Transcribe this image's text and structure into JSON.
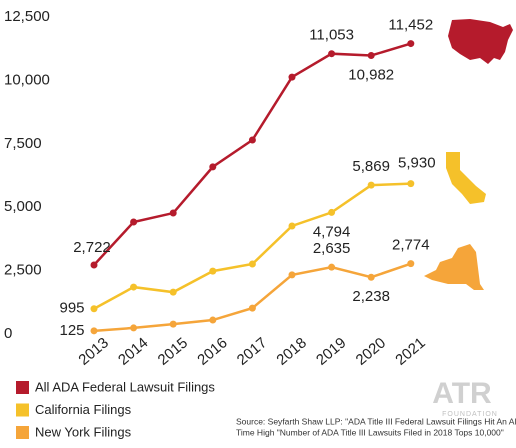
{
  "chart_data": {
    "type": "line",
    "categories": [
      "2013",
      "2014",
      "2015",
      "2016",
      "2017",
      "2018",
      "2019",
      "2020",
      "2021"
    ],
    "series": [
      {
        "name": "All ADA Federal Lawsuit Filings",
        "color": "#b51b2c",
        "values": [
          2722,
          4415,
          4770,
          6590,
          7650,
          10130,
          11053,
          10982,
          11452
        ],
        "value_labels": [
          "2,722",
          null,
          null,
          null,
          null,
          null,
          "11,053",
          "10,982",
          "11,452"
        ]
      },
      {
        "name": "California Filings",
        "color": "#f5c12a",
        "values": [
          995,
          1850,
          1650,
          2480,
          2760,
          4260,
          4794,
          5869,
          5930
        ],
        "value_labels": [
          "995",
          null,
          null,
          null,
          null,
          null,
          "4,794",
          "5,869",
          "5,930"
        ]
      },
      {
        "name": "New York Filings",
        "color": "#f5a53a",
        "values": [
          125,
          240,
          390,
          550,
          1020,
          2330,
          2635,
          2238,
          2774
        ],
        "value_labels": [
          "125",
          null,
          null,
          null,
          null,
          null,
          "2,635",
          "2,238",
          "2,774"
        ]
      }
    ],
    "ylim": [
      0,
      12500
    ],
    "yticks": [
      0,
      {
        "value": 2500,
        "label": "2,500"
      },
      {
        "value": 5000,
        "label": "5,000"
      },
      {
        "value": 7500,
        "label": "7,500"
      },
      {
        "value": 10000,
        "label": "10,000"
      },
      {
        "value": 12500,
        "label": "12,500"
      }
    ],
    "grid": false,
    "legend": "bottom-left",
    "source": [
      "Source: Seyfarth Shaw LLP: \"ADA Title III Federal Lawsuit Filings Hit An All",
      "Time High \"Number of ADA Title III Lawsuits Filed in 2018 Tops 10,000\""
    ],
    "logo": {
      "text": "ATR",
      "subtext": "FOUNDATION"
    }
  }
}
